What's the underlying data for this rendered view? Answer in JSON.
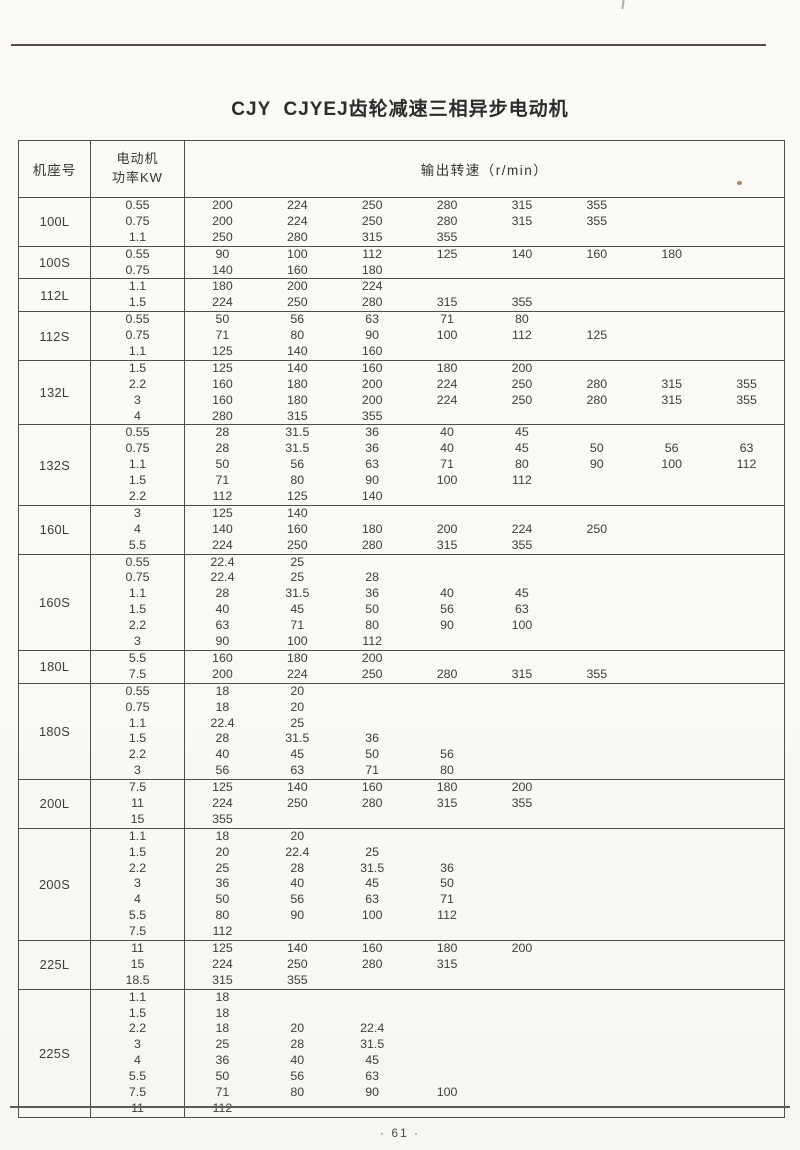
{
  "page": {
    "title": "CJY  CJYEJ齿轮减速三相异步电动机",
    "page_number": "· 61 ·"
  },
  "table": {
    "headers": {
      "frame": "机座号",
      "power_line1": "电动机",
      "power_line2": "功率KW",
      "speed": "输出转速（r/min）"
    },
    "groups": [
      {
        "frame": "100L",
        "rows": [
          {
            "power": "0.55",
            "speeds": [
              "200",
              "224",
              "250",
              "280",
              "315",
              "355"
            ]
          },
          {
            "power": "0.75",
            "speeds": [
              "200",
              "224",
              "250",
              "280",
              "315",
              "355"
            ]
          },
          {
            "power": "1.1",
            "speeds": [
              "250",
              "280",
              "315",
              "355"
            ]
          }
        ]
      },
      {
        "frame": "100S",
        "rows": [
          {
            "power": "0.55",
            "speeds": [
              "90",
              "100",
              "112",
              "125",
              "140",
              "160",
              "180"
            ]
          },
          {
            "power": "0.75",
            "speeds": [
              "140",
              "160",
              "180"
            ]
          }
        ]
      },
      {
        "frame": "112L",
        "rows": [
          {
            "power": "1.1",
            "speeds": [
              "180",
              "200",
              "224"
            ]
          },
          {
            "power": "1.5",
            "speeds": [
              "224",
              "250",
              "280",
              "315",
              "355"
            ]
          }
        ]
      },
      {
        "frame": "112S",
        "rows": [
          {
            "power": "0.55",
            "speeds": [
              "50",
              "56",
              "63",
              "71",
              "80"
            ]
          },
          {
            "power": "0.75",
            "speeds": [
              "71",
              "80",
              "90",
              "100",
              "112",
              "125"
            ]
          },
          {
            "power": "1.1",
            "speeds": [
              "125",
              "140",
              "160"
            ]
          }
        ]
      },
      {
        "frame": "132L",
        "rows": [
          {
            "power": "1.5",
            "speeds": [
              "125",
              "140",
              "160",
              "180",
              "200"
            ]
          },
          {
            "power": "2.2",
            "speeds": [
              "160",
              "180",
              "200",
              "224",
              "250",
              "280",
              "315",
              "355"
            ]
          },
          {
            "power": "3",
            "speeds": [
              "160",
              "180",
              "200",
              "224",
              "250",
              "280",
              "315",
              "355"
            ]
          },
          {
            "power": "4",
            "speeds": [
              "280",
              "315",
              "355"
            ]
          }
        ]
      },
      {
        "frame": "132S",
        "rows": [
          {
            "power": "0.55",
            "speeds": [
              "28",
              "31.5",
              "36",
              "40",
              "45"
            ]
          },
          {
            "power": "0.75",
            "speeds": [
              "28",
              "31.5",
              "36",
              "40",
              "45",
              "50",
              "56",
              "63"
            ]
          },
          {
            "power": "1.1",
            "speeds": [
              "50",
              "56",
              "63",
              "71",
              "80",
              "90",
              "100",
              "112"
            ]
          },
          {
            "power": "1.5",
            "speeds": [
              "71",
              "80",
              "90",
              "100",
              "112"
            ]
          },
          {
            "power": "2.2",
            "speeds": [
              "112",
              "125",
              "140"
            ]
          }
        ]
      },
      {
        "frame": "160L",
        "rows": [
          {
            "power": "3",
            "speeds": [
              "125",
              "140"
            ]
          },
          {
            "power": "4",
            "speeds": [
              "140",
              "160",
              "180",
              "200",
              "224",
              "250"
            ]
          },
          {
            "power": "5.5",
            "speeds": [
              "224",
              "250",
              "280",
              "315",
              "355"
            ]
          }
        ]
      },
      {
        "frame": "160S",
        "rows": [
          {
            "power": "0.55",
            "speeds": [
              "22.4",
              "25"
            ]
          },
          {
            "power": "0.75",
            "speeds": [
              "22.4",
              "25",
              "28"
            ]
          },
          {
            "power": "1.1",
            "speeds": [
              "28",
              "31.5",
              "36",
              "40",
              "45"
            ]
          },
          {
            "power": "1.5",
            "speeds": [
              "40",
              "45",
              "50",
              "56",
              "63"
            ]
          },
          {
            "power": "2.2",
            "speeds": [
              "63",
              "71",
              "80",
              "90",
              "100"
            ]
          },
          {
            "power": "3",
            "speeds": [
              "90",
              "100",
              "112"
            ]
          }
        ]
      },
      {
        "frame": "180L",
        "rows": [
          {
            "power": "5.5",
            "speeds": [
              "160",
              "180",
              "200"
            ]
          },
          {
            "power": "7.5",
            "speeds": [
              "200",
              "224",
              "250",
              "280",
              "315",
              "355"
            ]
          }
        ]
      },
      {
        "frame": "180S",
        "rows": [
          {
            "power": "0.55",
            "speeds": [
              "18",
              "20"
            ]
          },
          {
            "power": "0.75",
            "speeds": [
              "18",
              "20"
            ]
          },
          {
            "power": "1.1",
            "speeds": [
              "22.4",
              "25"
            ]
          },
          {
            "power": "1.5",
            "speeds": [
              "28",
              "31.5",
              "36"
            ]
          },
          {
            "power": "2.2",
            "speeds": [
              "40",
              "45",
              "50",
              "56"
            ]
          },
          {
            "power": "3",
            "speeds": [
              "56",
              "63",
              "71",
              "80"
            ]
          }
        ]
      },
      {
        "frame": "200L",
        "rows": [
          {
            "power": "7.5",
            "speeds": [
              "125",
              "140",
              "160",
              "180",
              "200"
            ]
          },
          {
            "power": "11",
            "speeds": [
              "224",
              "250",
              "280",
              "315",
              "355"
            ]
          },
          {
            "power": "15",
            "speeds": [
              "355"
            ]
          }
        ]
      },
      {
        "frame": "200S",
        "rows": [
          {
            "power": "1.1",
            "speeds": [
              "18",
              "20"
            ]
          },
          {
            "power": "1.5",
            "speeds": [
              "20",
              "22.4",
              "25"
            ]
          },
          {
            "power": "2.2",
            "speeds": [
              "25",
              "28",
              "31.5",
              "36"
            ]
          },
          {
            "power": "3",
            "speeds": [
              "36",
              "40",
              "45",
              "50"
            ]
          },
          {
            "power": "4",
            "speeds": [
              "50",
              "56",
              "63",
              "71"
            ]
          },
          {
            "power": "5.5",
            "speeds": [
              "80",
              "90",
              "100",
              "112"
            ]
          },
          {
            "power": "7.5",
            "speeds": [
              "112"
            ]
          }
        ]
      },
      {
        "frame": "225L",
        "rows": [
          {
            "power": "11",
            "speeds": [
              "125",
              "140",
              "160",
              "180",
              "200"
            ]
          },
          {
            "power": "15",
            "speeds": [
              "224",
              "250",
              "280",
              "315"
            ]
          },
          {
            "power": "18.5",
            "speeds": [
              "315",
              "355"
            ]
          }
        ]
      },
      {
        "frame": "225S",
        "rows": [
          {
            "power": "1.1",
            "speeds": [
              "18"
            ]
          },
          {
            "power": "1.5",
            "speeds": [
              "18"
            ]
          },
          {
            "power": "2.2",
            "speeds": [
              "18",
              "20",
              "22.4"
            ]
          },
          {
            "power": "3",
            "speeds": [
              "25",
              "28",
              "31.5"
            ]
          },
          {
            "power": "4",
            "speeds": [
              "36",
              "40",
              "45"
            ]
          },
          {
            "power": "5.5",
            "speeds": [
              "50",
              "56",
              "63"
            ]
          },
          {
            "power": "7.5",
            "speeds": [
              "71",
              "80",
              "90",
              "100"
            ]
          },
          {
            "power": "11",
            "speeds": [
              "112"
            ]
          }
        ]
      }
    ]
  }
}
